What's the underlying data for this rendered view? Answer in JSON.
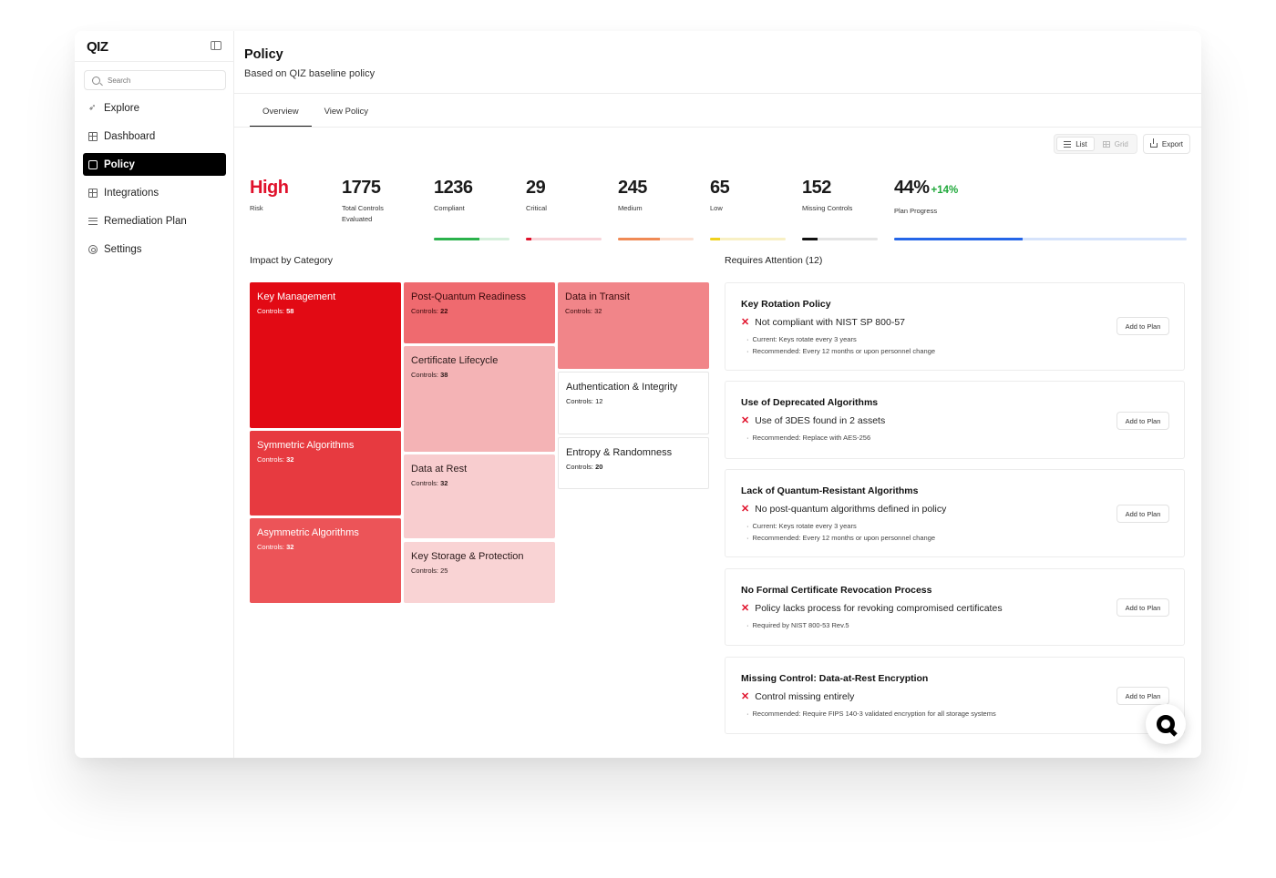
{
  "app": {
    "logo": "QIZ"
  },
  "sidebar": {
    "search_placeholder": "Search",
    "items": [
      {
        "label": "Explore",
        "icon": "rocket-icon"
      },
      {
        "label": "Dashboard",
        "icon": "dashboard-icon"
      },
      {
        "label": "Policy",
        "icon": "policy-icon",
        "active": true
      },
      {
        "label": "Integrations",
        "icon": "integrations-icon"
      },
      {
        "label": "Remediation Plan",
        "icon": "remediation-icon"
      },
      {
        "label": "Settings",
        "icon": "gear-icon"
      }
    ]
  },
  "header": {
    "title": "Policy",
    "subtitle": "Based on QIZ baseline policy"
  },
  "tabs": [
    {
      "label": "Overview",
      "active": true
    },
    {
      "label": "View Policy"
    }
  ],
  "toolbar": {
    "list_label": "List",
    "grid_label": "Grid",
    "export_label": "Export"
  },
  "stats": [
    {
      "value": "High",
      "label": "Risk"
    },
    {
      "value": "1775",
      "label": "Total Controls Evaluated"
    },
    {
      "value": "1236",
      "label": "Compliant",
      "fill": 0.6,
      "color": "#2bb24c",
      "track": "#d6f0dc"
    },
    {
      "value": "29",
      "label": "Critical",
      "fill": 0.07,
      "color": "#e0112b",
      "track": "#f8d3d8"
    },
    {
      "value": "245",
      "label": "Medium",
      "fill": 0.55,
      "color": "#f08a55",
      "track": "#fbe0d2"
    },
    {
      "value": "65",
      "label": "Low",
      "fill": 0.13,
      "color": "#f0d11d",
      "track": "#f8f0c4"
    },
    {
      "value": "152",
      "label": "Missing Controls",
      "fill": 0.2,
      "color": "#111111",
      "track": "#e4e4e4"
    },
    {
      "value": "44%",
      "delta": "+14%",
      "label": "Plan Progress",
      "fill": 0.44,
      "color": "#2566e8",
      "track": "#d6e3fb"
    }
  ],
  "impact": {
    "title": "Impact by Category",
    "count_prefix": "Controls: ",
    "categories": [
      {
        "name": "Key Management",
        "count": "58",
        "bold": true,
        "bg": "#e20a14",
        "fg": "#ffffff"
      },
      {
        "name": "Symmetric Algorithms",
        "count": "32",
        "bold": true,
        "bg": "#e73a40",
        "fg": "#ffffff"
      },
      {
        "name": "Asymmetric Algorithms",
        "count": "32",
        "bold": true,
        "bg": "#ec5458",
        "fg": "#ffffff"
      },
      {
        "name": "Post-Quantum Readiness",
        "count": "22",
        "bold": true,
        "bg": "#ef6a6f",
        "fg": "#3a0a0c"
      },
      {
        "name": "Certificate Lifecycle",
        "count": "38",
        "bold": true,
        "bg": "#f4b3b5",
        "fg": "#2a1a1a"
      },
      {
        "name": "Data at Rest",
        "count": "32",
        "bold": true,
        "bg": "#f8cdcf",
        "fg": "#2a1a1a"
      },
      {
        "name": "Key Storage & Protection",
        "count": "25",
        "bold": false,
        "bg": "#f9d3d4",
        "fg": "#2a1a1a"
      },
      {
        "name": "Data in Transit",
        "count": "32",
        "bold": false,
        "bg": "#f18589",
        "fg": "#3a0a0c"
      },
      {
        "name": "Authentication & Integrity",
        "count": "12",
        "bold": false,
        "bg": "#ffffff",
        "fg": "#222222"
      },
      {
        "name": "Entropy & Randomness",
        "count": "20",
        "bold": true,
        "bg": "#ffffff",
        "fg": "#222222"
      }
    ]
  },
  "attention": {
    "title": "Requires Attention (12)",
    "button_label": "Add to Plan",
    "items": [
      {
        "title": "Key Rotation Policy",
        "issue": "Not compliant with NIST SP 800-57",
        "details": [
          "Current: Keys rotate every 3 years",
          "Recommended: Every 12 months or upon personnel change"
        ]
      },
      {
        "title": "Use of Deprecated Algorithms",
        "issue": "Use of 3DES found in 2 assets",
        "details": [
          "Recommended: Replace with AES-256"
        ]
      },
      {
        "title": "Lack of Quantum-Resistant Algorithms",
        "issue": "No post-quantum algorithms defined in policy",
        "details": [
          "Current: Keys rotate every 3 years",
          "Recommended: Every 12 months or upon personnel change"
        ]
      },
      {
        "title": "No Formal Certificate Revocation Process",
        "issue": "Policy lacks process for revoking compromised certificates",
        "details": [
          "Required by NIST 800-53 Rev.5"
        ]
      },
      {
        "title": "Missing Control: Data-at-Rest Encryption",
        "issue": "Control missing entirely",
        "details": [
          "Recommended: Require FIPS 140-3 validated encryption for all storage systems"
        ]
      }
    ]
  }
}
